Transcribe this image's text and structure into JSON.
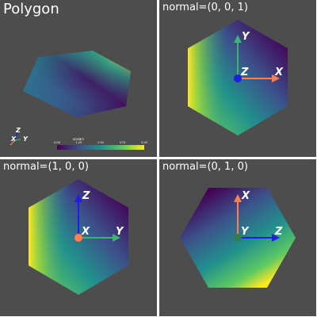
{
  "panels": [
    {
      "title": "Polygon"
    },
    {
      "title": "normal=(0, 0, 1)",
      "axes": {
        "right": "X",
        "up": "Y",
        "center": "Z"
      }
    },
    {
      "title": "normal=(1, 0, 0)",
      "axes": {
        "right": "Y",
        "up": "Z",
        "center": "X"
      }
    },
    {
      "title": "normal=(0, 1, 0)",
      "axes": {
        "right": "Z",
        "up": "X",
        "center": "Y"
      }
    }
  ],
  "orientation_widget": {
    "z": "Z",
    "x": "X",
    "y": "Y"
  },
  "colorbar": {
    "label": "scalars",
    "ticks": [
      "0.00",
      "1.25",
      "2.50",
      "3.75",
      "5.00"
    ]
  },
  "colors": {
    "background": "#4d4d4d",
    "x_axis": "#ff7f50",
    "y_axis": "#3cb371",
    "z_axis": "#1f1fdf"
  }
}
